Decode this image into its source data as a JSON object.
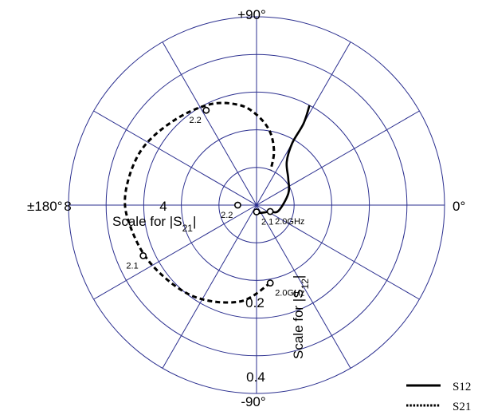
{
  "chart_data": {
    "type": "polar",
    "angle_labels": {
      "top": "+90°",
      "bottom": "-90°",
      "left": "±180°",
      "right": "0°"
    },
    "scale_s21": {
      "label": "Scale for |S21|",
      "base": "Scale for |S",
      "sub": "21",
      "tail": "|",
      "ticks": [
        "8",
        "4"
      ]
    },
    "scale_s12": {
      "label": "Scale for |S12|",
      "base": "Scale for |S",
      "sub": "12",
      "tail": "|",
      "ticks": [
        "0.2",
        "0.4"
      ]
    },
    "series": [
      {
        "name": "S12",
        "style": "solid",
        "points": [
          {
            "mag": 0.018,
            "phase_deg": -90
          },
          {
            "mag": 0.022,
            "phase_deg": -70
          },
          {
            "mag": 0.03,
            "phase_deg": -40
          },
          {
            "mag": 0.04,
            "phase_deg": -25
          },
          {
            "mag": 0.06,
            "phase_deg": -15
          },
          {
            "mag": 0.09,
            "phase_deg": 20
          },
          {
            "mag": 0.11,
            "phase_deg": 40
          },
          {
            "mag": 0.14,
            "phase_deg": 55
          },
          {
            "mag": 0.19,
            "phase_deg": 60
          },
          {
            "mag": 0.25,
            "phase_deg": 60
          },
          {
            "mag": 0.3,
            "phase_deg": 62
          }
        ],
        "markers": [
          {
            "label": "2.0GHz",
            "mag": 0.04,
            "phase_deg": -25
          },
          {
            "label": "2.1",
            "mag": 0.018,
            "phase_deg": -90
          },
          {
            "label": "2.2",
            "mag": 0.05,
            "phase_deg": 180
          }
        ]
      },
      {
        "name": "S21",
        "style": "dotted",
        "points": [
          {
            "mag": 4.2,
            "phase_deg": -80
          },
          {
            "mag": 5.2,
            "phase_deg": -100
          },
          {
            "mag": 5.9,
            "phase_deg": -125
          },
          {
            "mag": 6.4,
            "phase_deg": -150
          },
          {
            "mag": 6.8,
            "phase_deg": -170
          },
          {
            "mag": 7.0,
            "phase_deg": 175
          },
          {
            "mag": 6.8,
            "phase_deg": 155
          },
          {
            "mag": 6.3,
            "phase_deg": 135
          },
          {
            "mag": 5.9,
            "phase_deg": 115
          },
          {
            "mag": 5.4,
            "phase_deg": 100
          },
          {
            "mag": 4.8,
            "phase_deg": 90
          },
          {
            "mag": 4.0,
            "phase_deg": 80
          },
          {
            "mag": 3.0,
            "phase_deg": 72
          },
          {
            "mag": 2.0,
            "phase_deg": 68
          }
        ],
        "markers": [
          {
            "label": "2.0GHz",
            "mag": 4.2,
            "phase_deg": -80
          },
          {
            "label": "2.1",
            "mag": 6.6,
            "phase_deg": -156
          },
          {
            "label": "2.2",
            "mag": 5.7,
            "phase_deg": 118
          }
        ]
      }
    ],
    "legend": {
      "position": "bottom-right",
      "entries": [
        "S12",
        "S21"
      ]
    }
  }
}
